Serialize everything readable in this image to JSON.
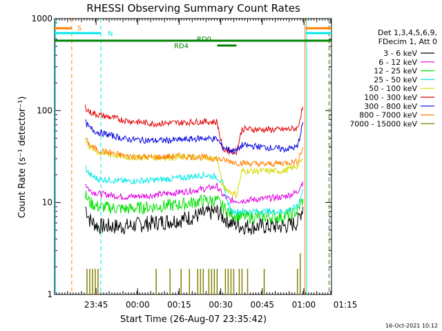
{
  "chart_data": {
    "type": "line",
    "title": "RHESSI Observing Summary Count Rates",
    "xlabel": "Start Time (26-Aug-07 23:35:42)",
    "ylabel": "Count Rate (s⁻¹ detector⁻¹)",
    "yscale": "log",
    "ylim": [
      1,
      1000
    ],
    "yticks": [
      {
        "v": 1,
        "label": "1"
      },
      {
        "v": 10,
        "label": "10"
      },
      {
        "v": 100,
        "label": "100"
      },
      {
        "v": 1000,
        "label": "1000"
      }
    ],
    "xlim_minutes": [
      -5.7,
      94.3
    ],
    "xticks": [
      {
        "t": 9.3,
        "label": "23:45"
      },
      {
        "t": 24.3,
        "label": "00:00"
      },
      {
        "t": 39.3,
        "label": "00:15"
      },
      {
        "t": 54.3,
        "label": "00:30"
      },
      {
        "t": 69.3,
        "label": "00:45"
      },
      {
        "t": 84.3,
        "label": "01:00"
      },
      {
        "t": 99.3,
        "label": "01:15"
      }
    ],
    "legend_placement": "right",
    "legend_header": [
      "Det 1,3,4,5,6,9,",
      "FDecim 1, Att 0"
    ],
    "series": [
      {
        "name": "3 - 6 keV",
        "color": "#000000",
        "values": [
          [
            5.4,
            9
          ],
          [
            7,
            6.5
          ],
          [
            10,
            5.5
          ],
          [
            20,
            5.5
          ],
          [
            30,
            6
          ],
          [
            40,
            6.5
          ],
          [
            48,
            7.5
          ],
          [
            53,
            8
          ],
          [
            55,
            7
          ],
          [
            58,
            6
          ],
          [
            62,
            5.5
          ],
          [
            70,
            5.5
          ],
          [
            77,
            5.5
          ],
          [
            82,
            6
          ],
          [
            84,
            9
          ]
        ]
      },
      {
        "name": "6 - 12 keV",
        "color": "#e000e0",
        "values": [
          [
            5.4,
            16
          ],
          [
            7,
            13.5
          ],
          [
            10,
            12.5
          ],
          [
            20,
            11.5
          ],
          [
            30,
            12
          ],
          [
            40,
            13
          ],
          [
            48,
            14
          ],
          [
            53,
            15
          ],
          [
            55,
            12
          ],
          [
            58,
            10.5
          ],
          [
            62,
            10.5
          ],
          [
            70,
            11
          ],
          [
            77,
            11.5
          ],
          [
            82,
            13
          ],
          [
            84,
            17
          ]
        ]
      },
      {
        "name": "12 - 25 keV",
        "color": "#00e000",
        "values": [
          [
            5.4,
            12
          ],
          [
            7,
            10
          ],
          [
            10,
            9
          ],
          [
            20,
            8.5
          ],
          [
            30,
            9
          ],
          [
            40,
            9.5
          ],
          [
            48,
            10.5
          ],
          [
            53,
            10.5
          ],
          [
            55,
            9
          ],
          [
            58,
            7.5
          ],
          [
            62,
            7
          ],
          [
            70,
            7
          ],
          [
            77,
            7
          ],
          [
            82,
            8
          ],
          [
            84,
            11
          ]
        ]
      },
      {
        "name": "25 - 50 keV",
        "color": "#00e8e8",
        "values": [
          [
            5.4,
            24
          ],
          [
            7,
            20
          ],
          [
            10,
            18
          ],
          [
            20,
            17
          ],
          [
            30,
            17.5
          ],
          [
            40,
            18.5
          ],
          [
            48,
            20
          ],
          [
            53,
            19
          ],
          [
            55,
            16
          ],
          [
            58,
            8
          ],
          [
            62,
            8
          ],
          [
            70,
            8
          ],
          [
            77,
            8
          ],
          [
            82,
            9
          ],
          [
            84,
            14
          ]
        ]
      },
      {
        "name": "50 - 100 keV",
        "color": "#d8d800",
        "values": [
          [
            5.4,
            48
          ],
          [
            7,
            40
          ],
          [
            10,
            35
          ],
          [
            20,
            31
          ],
          [
            30,
            31
          ],
          [
            40,
            31
          ],
          [
            48,
            31
          ],
          [
            53,
            30
          ],
          [
            55,
            15
          ],
          [
            58,
            13
          ],
          [
            60,
            12
          ],
          [
            62,
            22
          ],
          [
            70,
            22
          ],
          [
            77,
            22
          ],
          [
            82,
            25
          ],
          [
            84,
            30
          ]
        ]
      },
      {
        "name": "100 - 300 keV",
        "color": "#e00000",
        "values": [
          [
            5.4,
            110
          ],
          [
            7,
            96
          ],
          [
            10,
            90
          ],
          [
            20,
            78
          ],
          [
            30,
            72
          ],
          [
            40,
            74
          ],
          [
            48,
            76
          ],
          [
            53,
            75
          ],
          [
            55,
            38
          ],
          [
            58,
            36
          ],
          [
            60,
            36
          ],
          [
            62,
            63
          ],
          [
            70,
            62
          ],
          [
            77,
            62
          ],
          [
            82,
            64
          ],
          [
            84,
            110
          ]
        ]
      },
      {
        "name": "300 - 800 keV",
        "color": "#0000e0",
        "values": [
          [
            5.4,
            75
          ],
          [
            7,
            64
          ],
          [
            10,
            58
          ],
          [
            20,
            49
          ],
          [
            30,
            47
          ],
          [
            40,
            48
          ],
          [
            48,
            50
          ],
          [
            53,
            49
          ],
          [
            55,
            40
          ],
          [
            58,
            37
          ],
          [
            60,
            36
          ],
          [
            62,
            42
          ],
          [
            70,
            40
          ],
          [
            77,
            38
          ],
          [
            82,
            40
          ],
          [
            84,
            75
          ]
        ]
      },
      {
        "name": "800 - 7000 keV",
        "color": "#ff8000",
        "values": [
          [
            5.4,
            50
          ],
          [
            7,
            42
          ],
          [
            10,
            37
          ],
          [
            20,
            32
          ],
          [
            30,
            31
          ],
          [
            40,
            32
          ],
          [
            48,
            31
          ],
          [
            53,
            30
          ],
          [
            55,
            29
          ],
          [
            58,
            28
          ],
          [
            60,
            27
          ],
          [
            62,
            27
          ],
          [
            70,
            26
          ],
          [
            77,
            27
          ],
          [
            82,
            28
          ],
          [
            84,
            40
          ]
        ]
      },
      {
        "name": "7000 - 15000 keV",
        "color": "#808000",
        "values": [
          [
            6,
            1.9
          ],
          [
            7,
            1.9
          ],
          [
            8,
            1.9
          ],
          [
            9,
            1.9
          ],
          [
            10,
            1.9
          ],
          [
            31,
            1.9
          ],
          [
            36,
            1.9
          ],
          [
            40,
            1.9
          ],
          [
            43,
            1.9
          ],
          [
            46,
            1.9
          ],
          [
            47,
            1.9
          ],
          [
            48,
            1.9
          ],
          [
            50,
            1.9
          ],
          [
            51,
            1.9
          ],
          [
            52,
            1.9
          ],
          [
            53,
            1.9
          ],
          [
            56,
            1.9
          ],
          [
            57,
            1.9
          ],
          [
            58,
            1.9
          ],
          [
            59,
            1.9
          ],
          [
            61,
            1.9
          ],
          [
            62,
            1.9
          ],
          [
            64,
            1.9
          ],
          [
            70,
            1.9
          ],
          [
            82,
            1.9
          ],
          [
            83,
            2.8
          ]
        ]
      }
    ],
    "flag_bars": [
      {
        "label": "S",
        "color": "#ff8000",
        "ranges": [
          [
            -5.7,
            0.5
          ],
          [
            85.0,
            94.3
          ]
        ]
      },
      {
        "label": "N",
        "color": "#00e8e8",
        "ranges": [
          [
            -5.7,
            11.0
          ],
          [
            85.0,
            94.3
          ]
        ]
      },
      {
        "label": "RD0",
        "color": "#008000",
        "ranges": [
          [
            -5.7,
            94.3
          ]
        ]
      },
      {
        "label": "RD4",
        "color": "#008000",
        "ranges": [
          [
            53.0,
            60.0
          ]
        ]
      }
    ],
    "vertical_markers": [
      {
        "t": 0.5,
        "color": "#ff8000",
        "style": "dashed"
      },
      {
        "t": 11.0,
        "color": "#00e8e8",
        "style": "dashed"
      },
      {
        "t": 84.7,
        "color": "#ff8000",
        "style": "solid"
      },
      {
        "t": 85.3,
        "color": "#00e8e8",
        "style": "solid"
      },
      {
        "t": 93.3,
        "color": "#ff8000",
        "style": "dashed"
      },
      {
        "t": 93.6,
        "color": "#00e8e8",
        "style": "dashed"
      },
      {
        "t": -5.4,
        "color": "#00e8e8",
        "style": "solid"
      }
    ]
  },
  "footer": {
    "timestamp": "16-Oct-2021 10:12"
  }
}
